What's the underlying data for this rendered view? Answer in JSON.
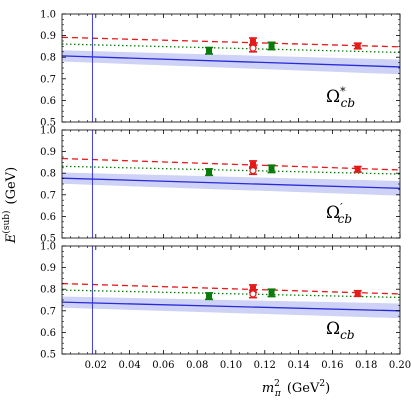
{
  "chart_data": [
    {
      "type": "scatter",
      "panel_label": "Ω*cb",
      "label_main": "Ω",
      "label_sup": "*",
      "label_sub": "cb",
      "xlim": [
        0,
        0.2
      ],
      "ylim": [
        0.5,
        1.0
      ],
      "x_ticks": [
        "0.02",
        "0.04",
        "0.06",
        "0.08",
        "0.10",
        "0.12",
        "0.14",
        "0.16",
        "0.18",
        "0.20"
      ],
      "y_ticks": [
        "0.5",
        "0.6",
        "0.7",
        "0.8",
        "0.9",
        "1.0"
      ],
      "vertical_line_x": 0.018,
      "points": [
        {
          "x": 0.087,
          "y": 0.83,
          "err": 0.015,
          "color": "#0a7a0a",
          "marker": "square"
        },
        {
          "x": 0.113,
          "y": 0.872,
          "err": 0.017,
          "color": "#e31b1b",
          "marker": "square"
        },
        {
          "x": 0.113,
          "y": 0.842,
          "err": 0.017,
          "color": "#e31b1b",
          "marker": "open-circle"
        },
        {
          "x": 0.124,
          "y": 0.852,
          "err": 0.017,
          "color": "#0a7a0a",
          "marker": "square"
        },
        {
          "x": 0.175,
          "y": 0.852,
          "err": 0.013,
          "color": "#e31b1b",
          "marker": "square"
        }
      ],
      "fits": [
        {
          "style": "dashed",
          "color": "#e31b1b",
          "x": [
            0,
            0.2
          ],
          "y": [
            0.892,
            0.848
          ]
        },
        {
          "style": "dotted",
          "color": "#0a7a0a",
          "x": [
            0,
            0.2
          ],
          "y": [
            0.861,
            0.822
          ]
        },
        {
          "style": "solid",
          "color": "#2a2ad9",
          "x": [
            0,
            0.2
          ],
          "y": [
            0.806,
            0.755
          ],
          "band_half_width": [
            0.026,
            0.034
          ]
        }
      ]
    },
    {
      "type": "scatter",
      "panel_label": "Ω′cb",
      "label_main": "Ω",
      "label_sup": "′",
      "label_sub": "cb",
      "xlim": [
        0,
        0.2
      ],
      "ylim": [
        0.5,
        1.0
      ],
      "x_ticks": [
        "0.02",
        "0.04",
        "0.06",
        "0.08",
        "0.10",
        "0.12",
        "0.14",
        "0.16",
        "0.18",
        "0.20"
      ],
      "y_ticks": [
        "0.5",
        "0.6",
        "0.7",
        "0.8",
        "0.9",
        "1.0"
      ],
      "vertical_line_x": 0.018,
      "points": [
        {
          "x": 0.087,
          "y": 0.805,
          "err": 0.015,
          "color": "#0a7a0a",
          "marker": "square"
        },
        {
          "x": 0.113,
          "y": 0.84,
          "err": 0.017,
          "color": "#e31b1b",
          "marker": "square"
        },
        {
          "x": 0.113,
          "y": 0.812,
          "err": 0.017,
          "color": "#e31b1b",
          "marker": "open-circle"
        },
        {
          "x": 0.124,
          "y": 0.82,
          "err": 0.017,
          "color": "#0a7a0a",
          "marker": "square"
        },
        {
          "x": 0.175,
          "y": 0.818,
          "err": 0.013,
          "color": "#e31b1b",
          "marker": "square"
        }
      ],
      "fits": [
        {
          "style": "dashed",
          "color": "#e31b1b",
          "x": [
            0,
            0.2
          ],
          "y": [
            0.868,
            0.815
          ]
        },
        {
          "style": "dotted",
          "color": "#0a7a0a",
          "x": [
            0,
            0.2
          ],
          "y": [
            0.832,
            0.796
          ]
        },
        {
          "style": "solid",
          "color": "#2a2ad9",
          "x": [
            0,
            0.2
          ],
          "y": [
            0.777,
            0.73
          ],
          "band_half_width": [
            0.026,
            0.034
          ]
        }
      ]
    },
    {
      "type": "scatter",
      "panel_label": "Ωcb",
      "label_main": "Ω",
      "label_sup": "",
      "label_sub": "cb",
      "xlim": [
        0,
        0.2
      ],
      "ylim": [
        0.5,
        1.0
      ],
      "x_ticks": [
        "0.02",
        "0.04",
        "0.06",
        "0.08",
        "0.10",
        "0.12",
        "0.14",
        "0.16",
        "0.18",
        "0.20"
      ],
      "y_ticks": [
        "0.5",
        "0.6",
        "0.7",
        "0.8",
        "0.9",
        "1.0"
      ],
      "vertical_line_x": 0.018,
      "points": [
        {
          "x": 0.087,
          "y": 0.768,
          "err": 0.015,
          "color": "#0a7a0a",
          "marker": "square"
        },
        {
          "x": 0.113,
          "y": 0.803,
          "err": 0.017,
          "color": "#e31b1b",
          "marker": "square"
        },
        {
          "x": 0.113,
          "y": 0.778,
          "err": 0.017,
          "color": "#e31b1b",
          "marker": "open-circle"
        },
        {
          "x": 0.124,
          "y": 0.783,
          "err": 0.017,
          "color": "#0a7a0a",
          "marker": "square"
        },
        {
          "x": 0.175,
          "y": 0.78,
          "err": 0.013,
          "color": "#e31b1b",
          "marker": "square"
        }
      ],
      "fits": [
        {
          "style": "dashed",
          "color": "#e31b1b",
          "x": [
            0,
            0.2
          ],
          "y": [
            0.826,
            0.778
          ]
        },
        {
          "style": "dotted",
          "color": "#0a7a0a",
          "x": [
            0,
            0.2
          ],
          "y": [
            0.796,
            0.762
          ]
        },
        {
          "style": "solid",
          "color": "#2a2ad9",
          "x": [
            0,
            0.2
          ],
          "y": [
            0.74,
            0.7
          ],
          "band_half_width": [
            0.026,
            0.034
          ]
        }
      ]
    }
  ],
  "axes": {
    "xlabel_main": "m",
    "xlabel_sub": "π",
    "xlabel_sup": "2",
    "xlabel_unit": "(GeV",
    "xlabel_unit_sup": "2",
    "xlabel_unit_close": ")",
    "ylabel_main": "E",
    "ylabel_sup": "(sub)",
    "ylabel_unit": "(GeV)"
  },
  "colors": {
    "band": "#cdd2f6",
    "blue": "#2a2ad9",
    "red": "#e31b1b",
    "green": "#0a7a0a"
  }
}
